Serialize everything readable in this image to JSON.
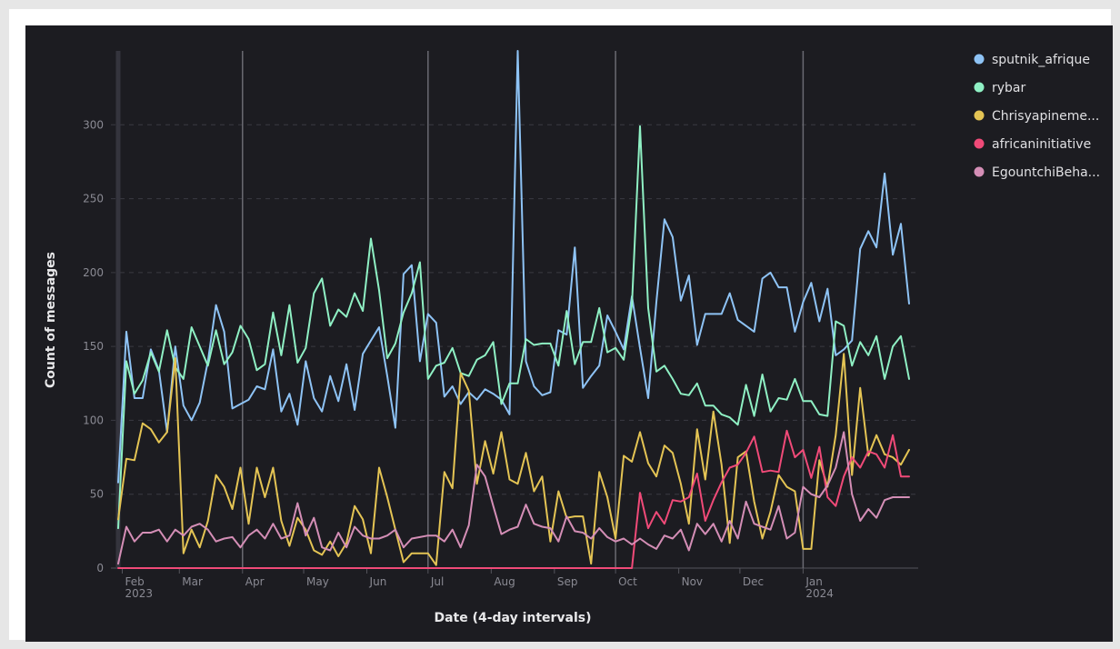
{
  "chart_data": {
    "type": "line",
    "xlabel": "Date (4-day intervals)",
    "ylabel": "Count of messages",
    "ylim": [
      0,
      350
    ],
    "yticks": [
      0,
      50,
      100,
      150,
      200,
      250,
      300
    ],
    "grid": true,
    "legend_position": "right",
    "x_start": "2023-01-28",
    "interval_days": 4,
    "num_points": 98,
    "month_ticks": [
      {
        "label": "Feb",
        "sub": "2023",
        "index": 0.5
      },
      {
        "label": "Mar",
        "sub": "",
        "index": 7.5
      },
      {
        "label": "Apr",
        "sub": "",
        "index": 15.25
      },
      {
        "label": "May",
        "sub": "",
        "index": 22.75
      },
      {
        "label": "Jun",
        "sub": "",
        "index": 30.5
      },
      {
        "label": "Jul",
        "sub": "",
        "index": 38.0
      },
      {
        "label": "Aug",
        "sub": "",
        "index": 45.75
      },
      {
        "label": "Sep",
        "sub": "",
        "index": 53.5
      },
      {
        "label": "Oct",
        "sub": "",
        "index": 61.0
      },
      {
        "label": "Nov",
        "sub": "",
        "index": 68.75
      },
      {
        "label": "Dec",
        "sub": "",
        "index": 76.25
      },
      {
        "label": "Jan",
        "sub": "2024",
        "index": 84.0
      }
    ],
    "series": [
      {
        "name": "sputnik_afrique",
        "color": "#8ec3f5",
        "values": [
          58,
          160,
          115,
          115,
          148,
          134,
          92,
          150,
          110,
          100,
          112,
          140,
          178,
          160,
          108,
          111,
          114,
          123,
          121,
          148,
          106,
          118,
          97,
          140,
          115,
          106,
          130,
          113,
          138,
          107,
          145,
          154,
          163,
          130,
          95,
          199,
          205,
          140,
          172,
          166,
          116,
          123,
          111,
          119,
          114,
          121,
          118,
          114,
          104,
          350,
          140,
          123,
          117,
          119,
          161,
          158,
          217,
          122,
          130,
          137,
          171,
          160,
          148,
          184,
          149,
          115,
          180,
          236,
          224,
          181,
          198,
          151,
          172,
          172,
          172,
          186,
          168,
          164,
          160,
          196,
          200,
          190,
          190,
          160,
          180,
          193,
          167,
          189,
          144,
          148,
          154,
          216,
          228,
          217,
          267,
          212,
          233,
          179
        ]
      },
      {
        "name": "rybar",
        "color": "#8ff0c4",
        "values": [
          27,
          140,
          118,
          127,
          146,
          133,
          161,
          136,
          128,
          163,
          150,
          137,
          161,
          138,
          146,
          164,
          155,
          134,
          138,
          173,
          144,
          178,
          139,
          149,
          186,
          196,
          164,
          175,
          170,
          186,
          174,
          223,
          188,
          142,
          152,
          173,
          186,
          207,
          128,
          137,
          139,
          149,
          132,
          130,
          141,
          144,
          153,
          111,
          125,
          125,
          155,
          151,
          152,
          152,
          137,
          174,
          138,
          153,
          153,
          176,
          146,
          149,
          141,
          178,
          299,
          176,
          133,
          137,
          128,
          118,
          117,
          125,
          110,
          110,
          104,
          102,
          97,
          124,
          103,
          131,
          106,
          115,
          114,
          128,
          113,
          113,
          104,
          103,
          167,
          164,
          137,
          153,
          144,
          157,
          128,
          150,
          157,
          128
        ]
      },
      {
        "name": "Chrisyapineme...",
        "color": "#e4c454",
        "values": [
          33,
          74,
          73,
          98,
          94,
          85,
          92,
          142,
          10,
          26,
          14,
          32,
          63,
          55,
          40,
          68,
          30,
          68,
          48,
          68,
          32,
          15,
          34,
          26,
          12,
          9,
          18,
          8,
          17,
          42,
          33,
          10,
          68,
          48,
          26,
          4,
          10,
          10,
          10,
          2,
          65,
          54,
          132,
          120,
          57,
          86,
          64,
          92,
          60,
          57,
          78,
          52,
          62,
          18,
          52,
          34,
          35,
          35,
          3,
          65,
          48,
          20,
          76,
          72,
          92,
          71,
          62,
          83,
          78,
          57,
          30,
          94,
          60,
          106,
          70,
          17,
          75,
          79,
          45,
          20,
          38,
          63,
          55,
          52,
          13,
          13,
          73,
          55,
          90,
          145,
          63,
          122,
          76,
          90,
          77,
          75,
          70,
          80
        ]
      },
      {
        "name": "africaninitiative",
        "color": "#f04a78",
        "values": [
          0,
          0,
          0,
          0,
          0,
          0,
          0,
          0,
          0,
          0,
          0,
          0,
          0,
          0,
          0,
          0,
          0,
          0,
          0,
          0,
          0,
          0,
          0,
          0,
          0,
          0,
          0,
          0,
          0,
          0,
          0,
          0,
          0,
          0,
          0,
          0,
          0,
          0,
          0,
          0,
          0,
          0,
          0,
          0,
          0,
          0,
          0,
          0,
          0,
          0,
          0,
          0,
          0,
          0,
          0,
          0,
          0,
          0,
          0,
          0,
          0,
          0,
          0,
          0,
          51,
          27,
          38,
          30,
          46,
          45,
          48,
          64,
          32,
          46,
          58,
          68,
          70,
          78,
          89,
          65,
          66,
          65,
          93,
          75,
          80,
          61,
          82,
          48,
          42,
          62,
          75,
          68,
          79,
          77,
          68,
          90,
          62,
          62
        ]
      },
      {
        "name": "EgountchiBeha...",
        "color": "#d48eb6",
        "values": [
          3,
          28,
          18,
          24,
          24,
          26,
          18,
          26,
          22,
          28,
          30,
          26,
          18,
          20,
          21,
          14,
          22,
          26,
          20,
          30,
          20,
          22,
          44,
          22,
          34,
          14,
          12,
          24,
          14,
          28,
          22,
          20,
          20,
          22,
          26,
          14,
          20,
          21,
          22,
          22,
          18,
          26,
          14,
          29,
          70,
          62,
          42,
          23,
          26,
          28,
          43,
          30,
          28,
          27,
          18,
          35,
          25,
          24,
          20,
          27,
          21,
          18,
          20,
          16,
          20,
          16,
          13,
          22,
          20,
          26,
          12,
          30,
          23,
          30,
          18,
          32,
          20,
          45,
          30,
          28,
          26,
          42,
          20,
          24,
          55,
          50,
          48,
          56,
          68,
          92,
          50,
          32,
          40,
          34,
          46,
          48,
          48,
          48
        ]
      }
    ]
  }
}
